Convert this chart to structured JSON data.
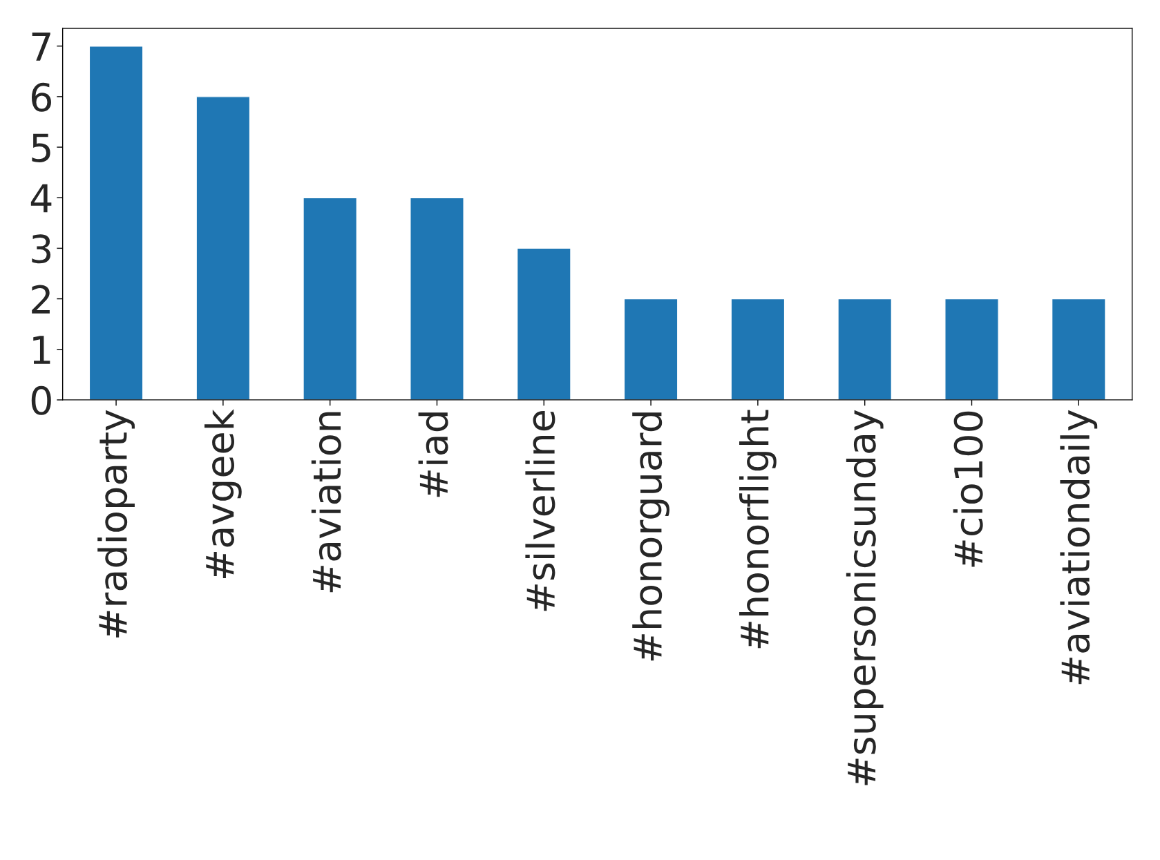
{
  "chart_data": {
    "type": "bar",
    "categories": [
      "#radioparty",
      "#avgeek",
      "#aviation",
      "#iad",
      "#silverline",
      "#honorguard",
      "#honorflight",
      "#supersonicsunday",
      "#cio100",
      "#aviationdaily"
    ],
    "values": [
      7,
      6,
      4,
      4,
      3,
      2,
      2,
      2,
      2,
      2
    ],
    "color": "#1f77b4",
    "ylim": [
      0,
      7.35
    ],
    "yticks": [
      0,
      1,
      2,
      3,
      4,
      5,
      6,
      7
    ],
    "grid": false,
    "legend": false
  }
}
